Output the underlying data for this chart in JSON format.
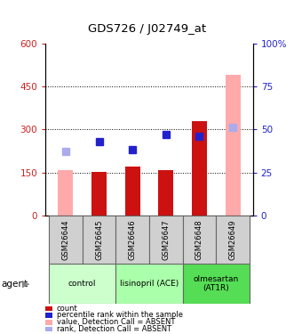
{
  "title": "GDS726 / J02749_at",
  "samples": [
    "GSM26644",
    "GSM26645",
    "GSM26646",
    "GSM26647",
    "GSM26648",
    "GSM26649"
  ],
  "bar_values": [
    158,
    152,
    170,
    157,
    330,
    490
  ],
  "bar_colors": [
    "#ffaaaa",
    "#cc1111",
    "#cc1111",
    "#cc1111",
    "#cc1111",
    "#ffaaaa"
  ],
  "rank_values": [
    37,
    43,
    38,
    47,
    46,
    51
  ],
  "rank_colors": [
    "#aaaaee",
    "#2222cc",
    "#2222cc",
    "#2222cc",
    "#2222cc",
    "#aaaaee"
  ],
  "ylim_left": [
    0,
    600
  ],
  "ylim_right": [
    0,
    100
  ],
  "yticks_left": [
    0,
    150,
    300,
    450,
    600
  ],
  "ytick_labels_left": [
    "0",
    "150",
    "300",
    "450",
    "600"
  ],
  "ytick_labels_right": [
    "0",
    "25",
    "50",
    "75",
    "100%"
  ],
  "ylabel_left_color": "#cc2222",
  "ylabel_right_color": "#2222cc",
  "grid_lines": [
    150,
    300,
    450
  ],
  "bar_width": 0.45,
  "marker_size": 6,
  "legend_items": [
    {
      "label": "count",
      "color": "#cc1111"
    },
    {
      "label": "percentile rank within the sample",
      "color": "#2222cc"
    },
    {
      "label": "value, Detection Call = ABSENT",
      "color": "#ffaaaa"
    },
    {
      "label": "rank, Detection Call = ABSENT",
      "color": "#aaaaee"
    }
  ],
  "group_data": [
    {
      "label": "control",
      "start": 0,
      "end": 1,
      "color": "#ccffcc"
    },
    {
      "label": "lisinopril (ACE)",
      "start": 2,
      "end": 3,
      "color": "#aaffaa"
    },
    {
      "label": "olmesartan\n(AT1R)",
      "start": 4,
      "end": 5,
      "color": "#55dd55"
    }
  ]
}
